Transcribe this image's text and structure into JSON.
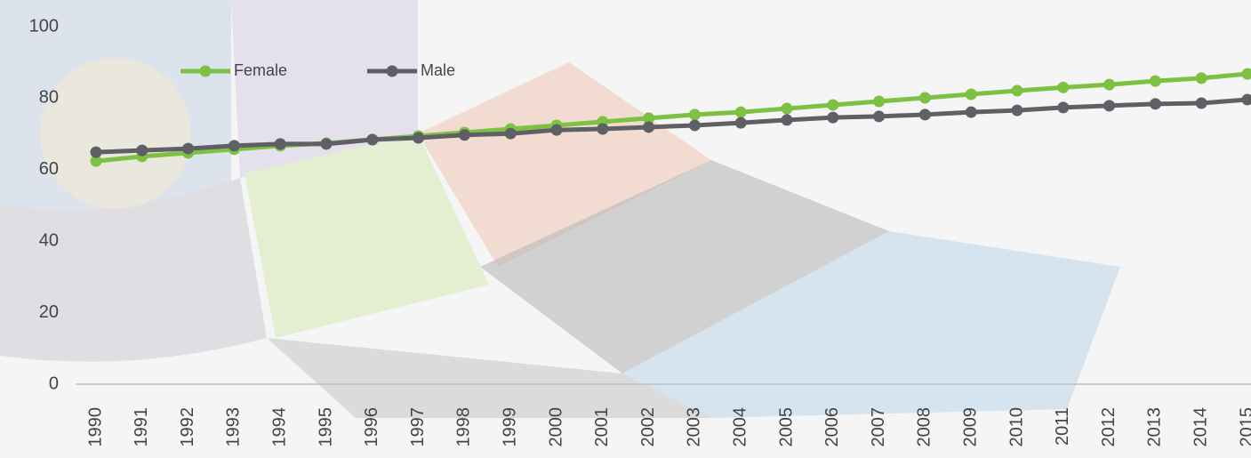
{
  "chart_data": {
    "type": "line",
    "categories": [
      "1990",
      "1991",
      "1992",
      "1993",
      "1994",
      "1995",
      "1996",
      "1997",
      "1998",
      "1999",
      "2000",
      "2001",
      "2002",
      "2003",
      "2004",
      "2005",
      "2006",
      "2007",
      "2008",
      "2009",
      "2010",
      "2011",
      "2012",
      "2013",
      "2014",
      "2015"
    ],
    "series": [
      {
        "name": "Female",
        "color": "#7dc142",
        "values": [
          62.4,
          63.7,
          64.7,
          65.7,
          66.7,
          67.4,
          68.4,
          69.4,
          70.4,
          71.4,
          72.4,
          73.4,
          74.4,
          75.4,
          76.1,
          77.1,
          78.1,
          79.1,
          80.1,
          81.1,
          82.1,
          83.0,
          83.8,
          84.8,
          85.6,
          86.8
        ]
      },
      {
        "name": "Male",
        "color": "#5f5f66",
        "values": [
          64.9,
          65.4,
          65.9,
          66.7,
          67.2,
          67.2,
          68.4,
          68.9,
          69.7,
          70.1,
          71.1,
          71.4,
          71.9,
          72.4,
          73.1,
          73.9,
          74.6,
          74.9,
          75.4,
          76.1,
          76.6,
          77.4,
          77.9,
          78.4,
          78.6,
          79.6
        ]
      }
    ],
    "ylim": [
      0,
      100
    ],
    "yticks": [
      0,
      20,
      40,
      60,
      80,
      100
    ],
    "legend": "top-left"
  }
}
